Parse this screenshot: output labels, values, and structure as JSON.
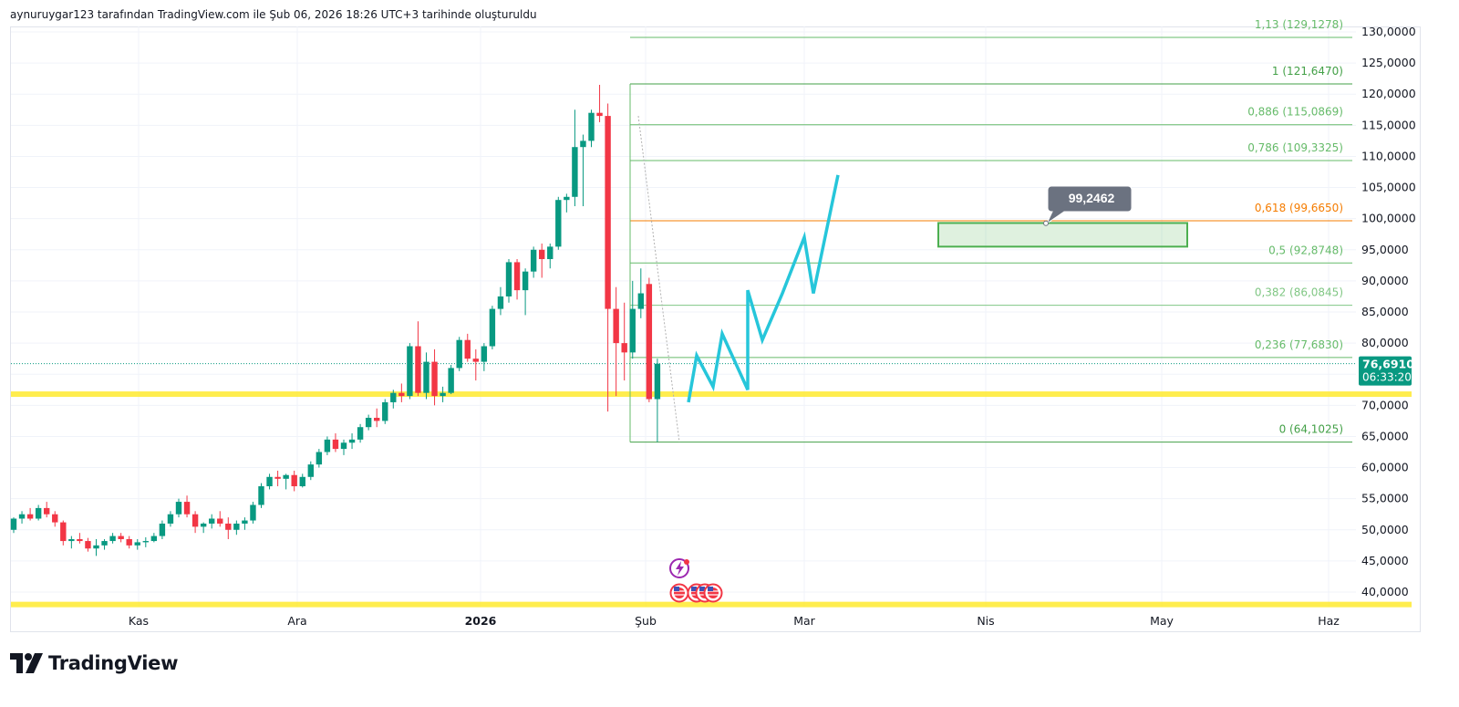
{
  "header": {
    "caption": "aynuruygar123 tarafından TradingView.com ile Şub 06, 2026 18:26 UTC+3 tarihinde oluşturuldu"
  },
  "brand": {
    "name": "TradingView"
  },
  "chart_data": {
    "type": "candlestick",
    "price_axis": {
      "min": 37000,
      "max": 131500,
      "ticks": [
        "130,0000",
        "125,0000",
        "120,0000",
        "115,0000",
        "110,0000",
        "105,0000",
        "100,0000",
        "95,0000",
        "90,0000",
        "85,0000",
        "80,0000",
        "75,0000",
        "70,0000",
        "65,0000",
        "60,0000",
        "55,0000",
        "50,0000",
        "45,0000",
        "40,0000"
      ],
      "tick_values": [
        130000,
        125000,
        120000,
        115000,
        110000,
        105000,
        100000,
        95000,
        90000,
        85000,
        80000,
        75000,
        70000,
        65000,
        60000,
        55000,
        50000,
        45000,
        40000
      ]
    },
    "time_axis": {
      "labels": [
        "Kas",
        "Ara",
        "2026",
        "Şub",
        "Mar",
        "Nis",
        "May",
        "Haz"
      ],
      "label_bold": [
        false,
        false,
        true,
        false,
        false,
        false,
        false,
        false
      ]
    },
    "current_price": {
      "price_label": "76,6910",
      "countdown": "06:33:20",
      "value": 76691,
      "color": "#089981"
    },
    "candles": [
      [
        50000,
        52000,
        49500,
        51800
      ],
      [
        51800,
        53000,
        51000,
        52500
      ],
      [
        52500,
        53500,
        51500,
        51800
      ],
      [
        51800,
        54000,
        51500,
        53500
      ],
      [
        53500,
        54500,
        52000,
        52500
      ],
      [
        52500,
        53000,
        50500,
        51200
      ],
      [
        51200,
        51500,
        47500,
        48200
      ],
      [
        48200,
        49000,
        47000,
        48500
      ],
      [
        48500,
        49500,
        47800,
        48200
      ],
      [
        48200,
        48700,
        46500,
        47000
      ],
      [
        47000,
        48500,
        45800,
        47500
      ],
      [
        47500,
        48500,
        46800,
        48200
      ],
      [
        48200,
        49500,
        47800,
        49000
      ],
      [
        49000,
        49500,
        48000,
        48500
      ],
      [
        48500,
        49000,
        47000,
        47500
      ],
      [
        47500,
        48500,
        46800,
        48000
      ],
      [
        48000,
        48800,
        47200,
        48200
      ],
      [
        48200,
        49500,
        48000,
        49000
      ],
      [
        49000,
        51500,
        48500,
        51000
      ],
      [
        51000,
        53000,
        50500,
        52500
      ],
      [
        52500,
        55000,
        52000,
        54500
      ],
      [
        54500,
        55500,
        52000,
        52500
      ],
      [
        52500,
        53000,
        49500,
        50500
      ],
      [
        50500,
        51200,
        49500,
        51000
      ],
      [
        51000,
        52500,
        50200,
        51800
      ],
      [
        51800,
        53000,
        50500,
        51000
      ],
      [
        51000,
        52000,
        48500,
        50000
      ],
      [
        50000,
        51500,
        49200,
        51000
      ],
      [
        51000,
        52000,
        50000,
        51500
      ],
      [
        51500,
        54500,
        51000,
        54000
      ],
      [
        54000,
        57500,
        53500,
        57000
      ],
      [
        57000,
        59000,
        56500,
        58500
      ],
      [
        58500,
        59500,
        57000,
        58200
      ],
      [
        58200,
        59000,
        56500,
        58800
      ],
      [
        58800,
        59500,
        56200,
        57000
      ],
      [
        57000,
        59000,
        56800,
        58500
      ],
      [
        58500,
        61000,
        58000,
        60500
      ],
      [
        60500,
        63000,
        60000,
        62500
      ],
      [
        62500,
        65000,
        62000,
        64500
      ],
      [
        64500,
        65500,
        62500,
        63000
      ],
      [
        63000,
        64500,
        62000,
        64000
      ],
      [
        64000,
        65500,
        63000,
        64500
      ],
      [
        64500,
        67000,
        64000,
        66500
      ],
      [
        66500,
        68500,
        66000,
        68000
      ],
      [
        68000,
        69500,
        66500,
        67500
      ],
      [
        67500,
        71000,
        67000,
        70500
      ],
      [
        70500,
        72500,
        69500,
        72000
      ],
      [
        72000,
        73500,
        70500,
        71500
      ],
      [
        71500,
        80000,
        71000,
        79500
      ],
      [
        79500,
        83500,
        71500,
        72000
      ],
      [
        72000,
        78500,
        71000,
        77000
      ],
      [
        77000,
        79000,
        70000,
        71500
      ],
      [
        71500,
        73000,
        70500,
        72000
      ],
      [
        72000,
        76500,
        71800,
        76000
      ],
      [
        76000,
        81000,
        75500,
        80500
      ],
      [
        80500,
        81500,
        77000,
        77500
      ],
      [
        77500,
        79000,
        74000,
        77000
      ],
      [
        77000,
        80000,
        75500,
        79500
      ],
      [
        79500,
        86000,
        79000,
        85500
      ],
      [
        85500,
        89000,
        84500,
        87500
      ],
      [
        87500,
        93500,
        86500,
        93000
      ],
      [
        93000,
        93500,
        87000,
        88500
      ],
      [
        88500,
        92000,
        84500,
        91500
      ],
      [
        91500,
        95500,
        90500,
        95000
      ],
      [
        95000,
        96000,
        90500,
        93500
      ],
      [
        93500,
        96000,
        92000,
        95500
      ],
      [
        95500,
        103500,
        95000,
        103000
      ],
      [
        103000,
        104000,
        101000,
        103500
      ],
      [
        103500,
        117500,
        102000,
        111500
      ],
      [
        111500,
        113500,
        102000,
        112500
      ],
      [
        112500,
        117500,
        111500,
        117000
      ],
      [
        117000,
        121500,
        115500,
        116500
      ],
      [
        116500,
        118500,
        69000,
        85500
      ],
      [
        85500,
        89000,
        71500,
        80000
      ],
      [
        80000,
        86500,
        74000,
        78500
      ],
      [
        78500,
        90000,
        77500,
        85500
      ],
      [
        85500,
        92000,
        84000,
        88000
      ],
      [
        89500,
        90500,
        70500,
        71000
      ],
      [
        71000,
        77500,
        64100,
        76691
      ]
    ],
    "fibonacci": [
      {
        "ratio": "1,13",
        "value": 129128,
        "label": "1,13 (129,1278)",
        "color": "#66bb6a"
      },
      {
        "ratio": "1",
        "value": 121647,
        "label": "1 (121,6470)",
        "color": "#43a047"
      },
      {
        "ratio": "0,886",
        "value": 115087,
        "label": "0,886 (115,0869)",
        "color": "#66bb6a"
      },
      {
        "ratio": "0,786",
        "value": 109333,
        "label": "0,786 (109,3325)",
        "color": "#66bb6a"
      },
      {
        "ratio": "0,618",
        "value": 99665,
        "label": "0,618 (99,6650)",
        "color": "#f57c00"
      },
      {
        "ratio": "0,5",
        "value": 92875,
        "label": "0,5 (92,8748)",
        "color": "#66bb6a"
      },
      {
        "ratio": "0,382",
        "value": 86085,
        "label": "0,382 (86,0845)",
        "color": "#81c784"
      },
      {
        "ratio": "0,236",
        "value": 77683,
        "label": "0,236 (77,6830)",
        "color": "#66bb6a"
      },
      {
        "ratio": "0",
        "value": 64103,
        "label": "0 (64,1025)",
        "color": "#43a047"
      }
    ],
    "support_lines": [
      {
        "value": 71800,
        "color": "#ffeb3b"
      },
      {
        "value": 38000,
        "color": "#ffeb3b"
      }
    ],
    "target_zone": {
      "top": 99300,
      "bottom": 95500,
      "color": "#4caf50"
    },
    "callout": {
      "label": "99,2462",
      "value": 99246
    },
    "projection": {
      "color": "#26c6da",
      "values": [
        70500,
        78000,
        73000,
        81500,
        72500,
        88500,
        80500,
        88000,
        97000,
        88000,
        107000
      ]
    },
    "colors": {
      "up": "#089981",
      "down": "#f23645",
      "grid": "#f0f3fa",
      "axis_text": "#131722"
    }
  }
}
